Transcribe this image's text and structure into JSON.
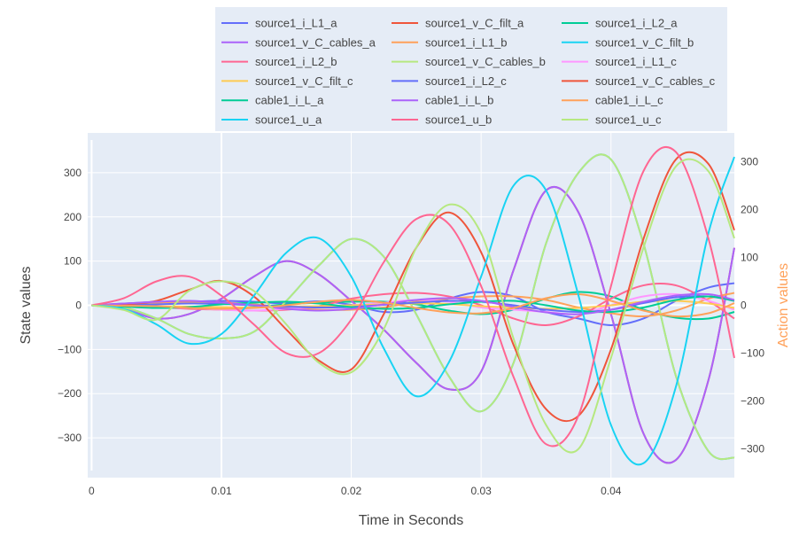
{
  "chart_data": {
    "type": "line",
    "x_range": [
      -0.0003,
      0.0495
    ],
    "xlabel": "Time in Seconds",
    "x_ticks": [
      0,
      0.01,
      0.02,
      0.03,
      0.04
    ],
    "x_tick_labels": [
      "0",
      "0.01",
      "0.02",
      "0.03",
      "0.04"
    ],
    "ylabel": "State values",
    "ylim": [
      -390,
      390
    ],
    "y_ticks": [
      -300,
      -200,
      -100,
      0,
      100,
      200,
      300
    ],
    "y_tick_labels": [
      "−300",
      "−200",
      "−100",
      "0",
      "100",
      "200",
      "300"
    ],
    "y2label": "Action values",
    "y2lim": [
      -360,
      360
    ],
    "y2_ticks": [
      -300,
      -200,
      -100,
      0,
      100,
      200,
      300
    ],
    "y2_tick_labels": [
      "−300",
      "−200",
      "−100",
      "0",
      "100",
      "200",
      "300"
    ],
    "annotation_vline_x": 0.01,
    "x": [
      0,
      0.0025,
      0.005,
      0.0075,
      0.01,
      0.0125,
      0.015,
      0.0175,
      0.02,
      0.0225,
      0.025,
      0.0275,
      0.03,
      0.0325,
      0.035,
      0.0375,
      0.04,
      0.0425,
      0.045,
      0.0475,
      0.0495
    ],
    "series": [
      {
        "name": "source1_i_L1_a",
        "color": "#636efa",
        "axis": "y",
        "values": [
          0,
          4,
          7,
          8,
          10,
          8,
          4,
          9,
          1,
          -15,
          -10,
          15,
          30,
          20,
          -15,
          -30,
          -45,
          -30,
          10,
          40,
          50
        ]
      },
      {
        "name": "source1_v_C_filt_a",
        "color": "#EF553B",
        "axis": "y",
        "values": [
          0,
          -8,
          -30,
          -20,
          15,
          65,
          100,
          70,
          10,
          -55,
          -130,
          -190,
          -150,
          80,
          260,
          210,
          -20,
          -290,
          -350,
          -170,
          130
        ]
      },
      {
        "name": "source1_i_L2_a",
        "color": "#00cc96",
        "axis": "y",
        "values": [
          0,
          0,
          -3,
          -6,
          -8,
          -4,
          2,
          6,
          8,
          8,
          2,
          -12,
          -20,
          -10,
          15,
          30,
          20,
          -10,
          -28,
          -30,
          -15
        ]
      },
      {
        "name": "source1_v_C_cables_a",
        "color": "#ab63fa",
        "axis": "y",
        "values": [
          0,
          -8,
          -30,
          -20,
          15,
          65,
          100,
          70,
          10,
          -55,
          -130,
          -190,
          -150,
          80,
          260,
          210,
          -20,
          -290,
          -350,
          -170,
          130
        ]
      },
      {
        "name": "source1_i_L1_b",
        "color": "#FFA15A",
        "axis": "y",
        "values": [
          0,
          3,
          6,
          8,
          6,
          2,
          -5,
          -10,
          -10,
          -5,
          8,
          15,
          20,
          20,
          12,
          -5,
          -18,
          -25,
          -12,
          15,
          28
        ]
      },
      {
        "name": "source1_v_C_filt_b",
        "color": "#19d3f3",
        "axis": "y",
        "values": [
          0,
          -5,
          -30,
          -65,
          -75,
          -60,
          10,
          90,
          150,
          110,
          -20,
          -160,
          -240,
          -130,
          140,
          300,
          330,
          140,
          -160,
          -330,
          -345
        ]
      },
      {
        "name": "source1_i_L2_b",
        "color": "#FF6692",
        "axis": "y",
        "values": [
          0,
          -2,
          -4,
          -8,
          -10,
          -12,
          -10,
          -2,
          15,
          25,
          28,
          20,
          0,
          -30,
          -45,
          -25,
          15,
          45,
          45,
          10,
          -30
        ]
      },
      {
        "name": "source1_v_C_cables_b",
        "color": "#B6E880",
        "axis": "y",
        "values": [
          0,
          -5,
          -30,
          -65,
          -75,
          -60,
          10,
          90,
          150,
          110,
          -20,
          -160,
          -240,
          -130,
          140,
          300,
          330,
          140,
          -160,
          -330,
          -345
        ]
      },
      {
        "name": "source1_i_L1_c",
        "color": "#FF97FF",
        "axis": "y",
        "values": [
          0,
          -2,
          -5,
          -6,
          -10,
          -12,
          -8,
          -4,
          0,
          6,
          12,
          8,
          -5,
          -10,
          -15,
          -20,
          0,
          20,
          25,
          10,
          -10
        ]
      },
      {
        "name": "source1_v_C_filt_c",
        "color": "#FECB52",
        "axis": "y",
        "values": [
          0,
          -1,
          -2,
          -3,
          -4,
          -5,
          -3,
          -2,
          0,
          2,
          4,
          3,
          -2,
          -5,
          -8,
          -6,
          0,
          8,
          10,
          4,
          -6
        ]
      },
      {
        "name": "source1_i_L2_c",
        "color": "#636efa",
        "axis": "y",
        "values": [
          0,
          1,
          2,
          4,
          3,
          0,
          -3,
          -5,
          -4,
          1,
          6,
          10,
          8,
          0,
          -10,
          -15,
          -10,
          5,
          18,
          20,
          10
        ]
      },
      {
        "name": "source1_v_C_cables_c",
        "color": "#EF553B",
        "axis": "y",
        "values": [
          0,
          2,
          10,
          35,
          55,
          20,
          -55,
          -125,
          -145,
          -20,
          130,
          210,
          120,
          -90,
          -235,
          -250,
          -100,
          150,
          330,
          320,
          170
        ]
      },
      {
        "name": "cable1_i_L_a",
        "color": "#00cc96",
        "axis": "y",
        "values": [
          0,
          -3,
          -6,
          -4,
          2,
          6,
          8,
          4,
          -4,
          -8,
          -6,
          2,
          8,
          10,
          0,
          -12,
          -15,
          -5,
          12,
          20,
          10
        ]
      },
      {
        "name": "cable1_i_L_b",
        "color": "#ab63fa",
        "axis": "y",
        "values": [
          0,
          4,
          8,
          10,
          6,
          0,
          -8,
          -12,
          -8,
          2,
          12,
          16,
          10,
          -4,
          -16,
          -20,
          -10,
          8,
          22,
          25,
          12
        ]
      },
      {
        "name": "cable1_i_L_c",
        "color": "#FFA15A",
        "axis": "y",
        "values": [
          0,
          -1,
          -2,
          -6,
          -8,
          -6,
          0,
          8,
          12,
          6,
          -6,
          -16,
          -18,
          -6,
          16,
          25,
          10,
          -12,
          -25,
          -18,
          5
        ]
      },
      {
        "name": "source1_u_a",
        "color": "#19d3f3",
        "axis": "y2",
        "values": [
          0,
          -8,
          -40,
          -80,
          -60,
          20,
          110,
          140,
          60,
          -90,
          -190,
          -120,
          60,
          250,
          240,
          20,
          -250,
          -330,
          -170,
          150,
          310
        ]
      },
      {
        "name": "source1_u_b",
        "color": "#FF6692",
        "axis": "y2",
        "values": [
          0,
          15,
          50,
          60,
          20,
          -40,
          -100,
          -100,
          -30,
          90,
          180,
          170,
          40,
          -150,
          -290,
          -230,
          40,
          280,
          320,
          140,
          -110
        ]
      },
      {
        "name": "source1_u_c",
        "color": "#B6E880",
        "axis": "y2",
        "values": [
          0,
          -10,
          -30,
          30,
          50,
          30,
          -40,
          -120,
          -140,
          -50,
          120,
          210,
          150,
          -70,
          -250,
          -300,
          -110,
          120,
          290,
          280,
          140
        ]
      }
    ]
  }
}
